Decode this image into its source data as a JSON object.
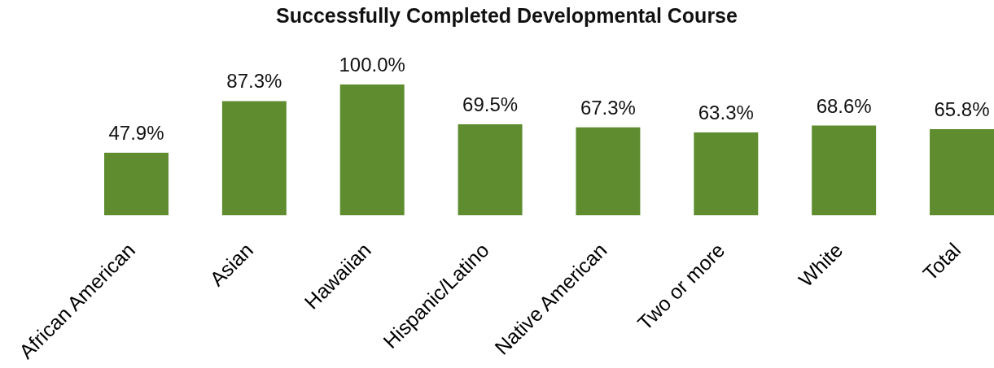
{
  "chart_data": {
    "type": "bar",
    "title": "Successfully Completed Developmental Course",
    "categories": [
      "African American",
      "Asian",
      "Hawaiian",
      "Hispanic/Latino",
      "Native American",
      "Two or more",
      "White",
      "Total"
    ],
    "values": [
      47.9,
      87.3,
      100.0,
      69.5,
      67.3,
      63.3,
      68.6,
      65.8
    ],
    "value_labels": [
      "47.9%",
      "87.3%",
      "100.0%",
      "69.5%",
      "67.3%",
      "63.3%",
      "68.6%",
      "65.8%"
    ],
    "color": "#5e8c2e"
  }
}
